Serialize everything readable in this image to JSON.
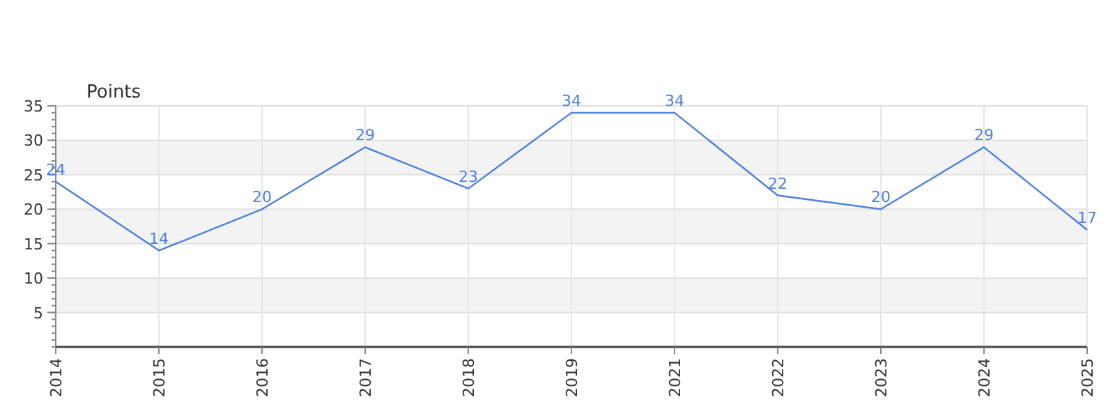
{
  "chart_data": {
    "type": "line",
    "ylabel": "Points",
    "categories": [
      "2014",
      "2015",
      "2016",
      "2017",
      "2018",
      "2019",
      "2021",
      "2022",
      "2023",
      "2024",
      "2025"
    ],
    "series": [
      {
        "color": "#4a80e0",
        "values": [
          24,
          14,
          20,
          29,
          23,
          34,
          34,
          22,
          20,
          29,
          17
        ]
      }
    ],
    "ylim": [
      0,
      35
    ],
    "yticks": [
      5,
      10,
      15,
      20,
      25,
      30,
      35
    ],
    "grid": true,
    "data_labels": true,
    "marker": "none",
    "line_style": "solid"
  }
}
